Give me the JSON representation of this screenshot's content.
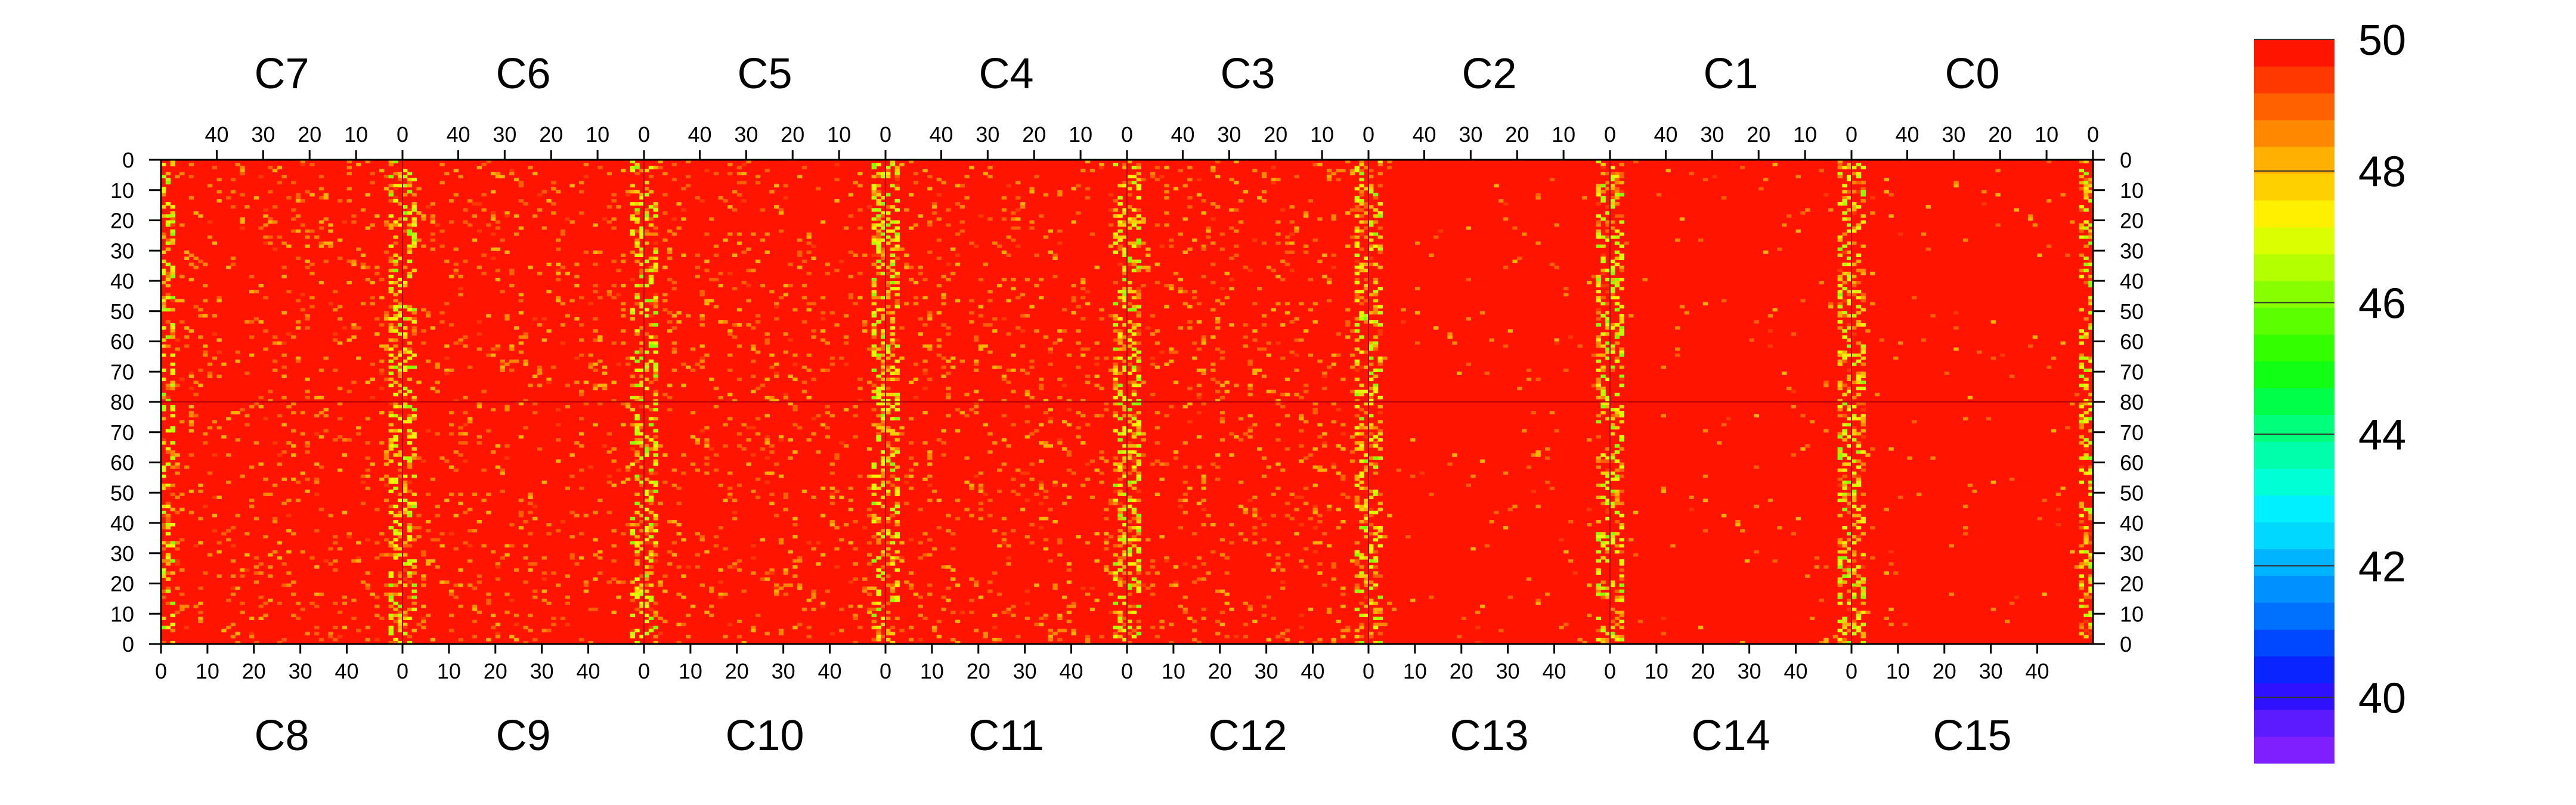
{
  "chart_data": {
    "type": "heatmap",
    "title": "",
    "xlabel": "",
    "ylabel": "",
    "top_chips": [
      "C7",
      "C6",
      "C5",
      "C4",
      "C3",
      "C2",
      "C1",
      "C0"
    ],
    "bottom_chips": [
      "C8",
      "C9",
      "C10",
      "C11",
      "C12",
      "C13",
      "C14",
      "C15"
    ],
    "columns_per_chip": 52,
    "rows_per_half": 80,
    "top_x_ticks": [
      "40",
      "30",
      "20",
      "10",
      "0"
    ],
    "bottom_x_ticks": [
      "0",
      "10",
      "20",
      "30",
      "40"
    ],
    "top_y_ticks": [
      "0",
      "10",
      "20",
      "30",
      "40",
      "50",
      "60",
      "70",
      "80"
    ],
    "bottom_y_ticks": [
      "80",
      "70",
      "60",
      "50",
      "40",
      "30",
      "20",
      "10",
      "0"
    ],
    "z_range": [
      39,
      50
    ],
    "colorbar_ticks": [
      "40",
      "42",
      "44",
      "46",
      "48",
      "50"
    ],
    "baseline_value": 50,
    "noisy_column_boundaries": [
      0,
      1,
      2,
      3,
      4,
      5,
      6,
      7
    ],
    "colorbar_colors": [
      "#7f1fff",
      "#5b1aff",
      "#2f10ff",
      "#0a24ff",
      "#0048ff",
      "#0070ff",
      "#0090ff",
      "#00b4ff",
      "#00d8ff",
      "#00f0ff",
      "#00ffd4",
      "#00ffaa",
      "#00ff7a",
      "#00ff48",
      "#10ff14",
      "#34ff00",
      "#5cff00",
      "#88ff00",
      "#b4ff00",
      "#dcff00",
      "#fff000",
      "#ffd000",
      "#ffb000",
      "#ff8800",
      "#ff6000",
      "#ff3800",
      "#ff1400"
    ],
    "legend_position": "right",
    "grid": false
  }
}
